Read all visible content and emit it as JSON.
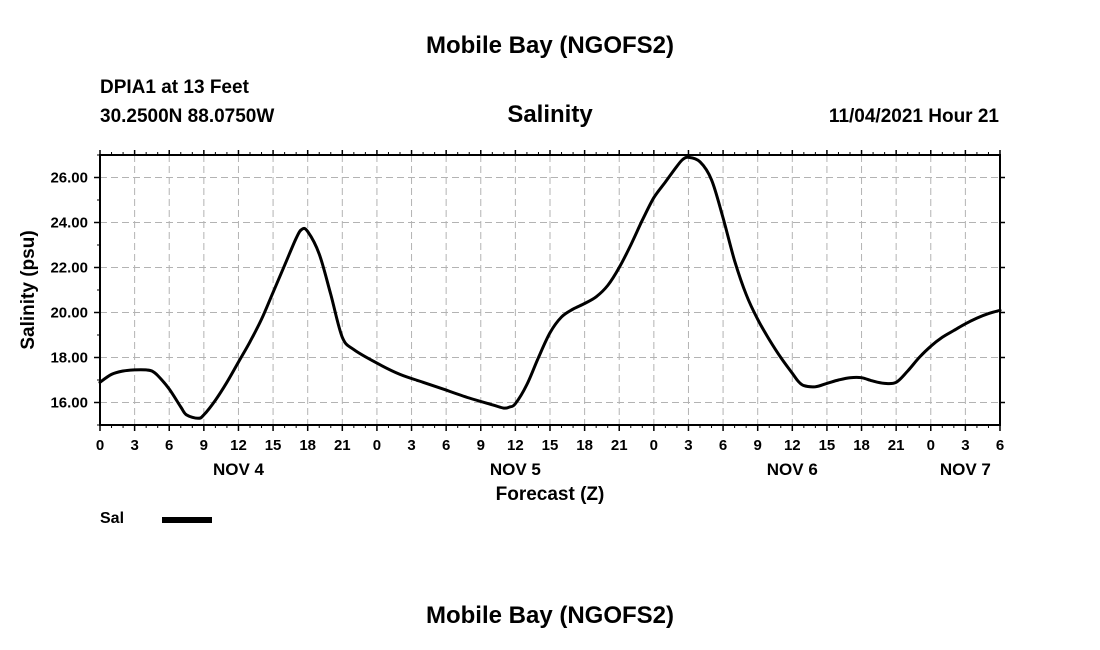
{
  "header": {
    "title": "Mobile Bay (NGOFS2)",
    "station": "DPIA1 at 13 Feet",
    "coords": "30.2500N  88.0750W",
    "chart_title": "Salinity",
    "datetime": "11/04/2021 Hour 21"
  },
  "footer": {
    "title": "Mobile Bay (NGOFS2)"
  },
  "legend": {
    "label": "Sal",
    "color": "#000000"
  },
  "chart_data": {
    "type": "line",
    "title": "Salinity",
    "xlabel": "Forecast (Z)",
    "ylabel": "Salinity (psu)",
    "x_unit": "hours from 00Z NOV 4",
    "xlim": [
      0,
      78
    ],
    "ylim": [
      15,
      27
    ],
    "grid": true,
    "legend_position": "bottom-left",
    "y_ticks": [
      "16.00",
      "18.00",
      "20.00",
      "22.00",
      "24.00",
      "26.00"
    ],
    "y_tick_values": [
      16,
      18,
      20,
      22,
      24,
      26
    ],
    "x_tick_labels": [
      "0",
      "3",
      "6",
      "9",
      "12",
      "15",
      "18",
      "21",
      "0",
      "3",
      "6",
      "9",
      "12",
      "15",
      "18",
      "21",
      "0",
      "3",
      "6",
      "9",
      "12",
      "15",
      "18",
      "21",
      "0",
      "3",
      "6"
    ],
    "day_labels": [
      {
        "label": "NOV 4",
        "x": 12
      },
      {
        "label": "NOV 5",
        "x": 36
      },
      {
        "label": "NOV 6",
        "x": 60
      },
      {
        "label": "NOV 7",
        "x": 75
      }
    ],
    "series": [
      {
        "name": "Sal",
        "x": [
          0,
          1,
          2,
          3,
          4,
          4.5,
          5,
          6,
          7,
          7.5,
          8.5,
          9,
          10,
          11,
          12,
          13,
          14,
          15,
          16,
          17,
          17.5,
          18,
          19,
          20,
          21,
          22,
          24,
          26,
          28,
          30,
          32,
          34,
          35,
          35.5,
          36,
          37,
          38,
          39,
          40,
          41,
          42,
          43,
          44,
          45,
          46,
          47,
          48,
          49,
          50,
          50.5,
          51,
          52,
          53,
          54,
          55,
          56,
          57,
          58,
          59,
          60,
          60.5,
          61,
          62,
          63,
          64,
          65,
          66,
          67,
          68,
          69,
          70,
          71,
          72,
          73,
          74,
          75,
          76,
          77,
          78
        ],
        "values": [
          16.9,
          17.25,
          17.4,
          17.45,
          17.45,
          17.4,
          17.2,
          16.6,
          15.8,
          15.45,
          15.3,
          15.45,
          16.1,
          16.9,
          17.8,
          18.7,
          19.7,
          20.9,
          22.1,
          23.3,
          23.7,
          23.6,
          22.6,
          20.8,
          18.9,
          18.35,
          17.75,
          17.25,
          16.9,
          16.55,
          16.2,
          15.9,
          15.75,
          15.8,
          15.95,
          16.8,
          18.0,
          19.1,
          19.8,
          20.15,
          20.4,
          20.7,
          21.2,
          22.0,
          23.0,
          24.1,
          25.1,
          25.8,
          26.5,
          26.8,
          26.9,
          26.7,
          25.9,
          24.2,
          22.3,
          20.8,
          19.7,
          18.8,
          18.0,
          17.3,
          16.95,
          16.75,
          16.7,
          16.85,
          17.0,
          17.1,
          17.1,
          16.95,
          16.85,
          16.9,
          17.4,
          18.0,
          18.5,
          18.9,
          19.2,
          19.5,
          19.75,
          19.95,
          20.1
        ]
      }
    ]
  }
}
